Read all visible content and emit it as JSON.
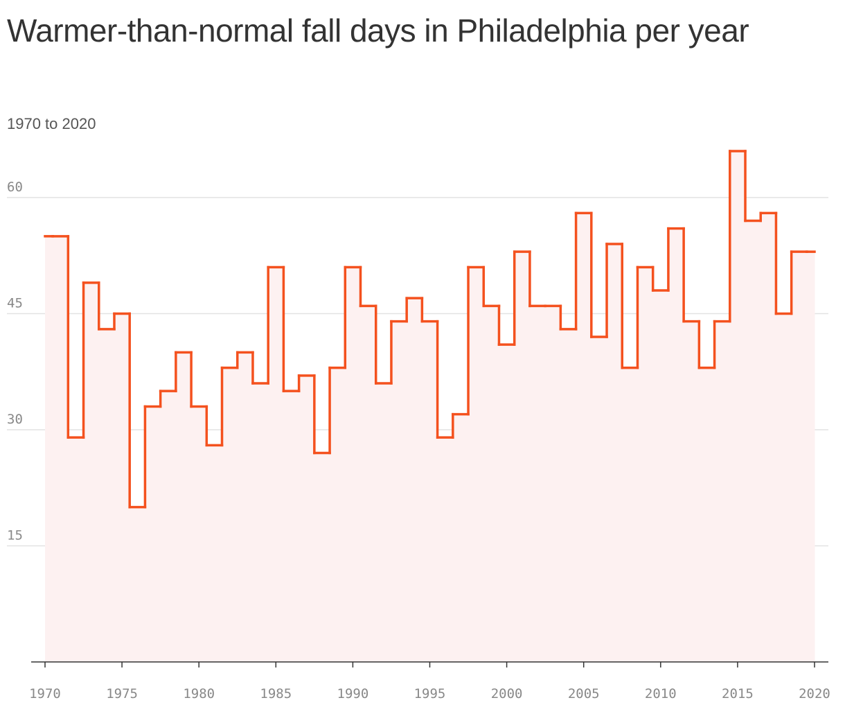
{
  "chart_data": {
    "type": "line",
    "step": "mid",
    "title": "Warmer-than-normal fall days in Philadelphia per year",
    "subtitle": "1970 to 2020",
    "x": [
      1970,
      1971,
      1972,
      1973,
      1974,
      1975,
      1976,
      1977,
      1978,
      1979,
      1980,
      1981,
      1982,
      1983,
      1984,
      1985,
      1986,
      1987,
      1988,
      1989,
      1990,
      1991,
      1992,
      1993,
      1994,
      1995,
      1996,
      1997,
      1998,
      1999,
      2000,
      2001,
      2002,
      2003,
      2004,
      2005,
      2006,
      2007,
      2008,
      2009,
      2010,
      2011,
      2012,
      2013,
      2014,
      2015,
      2016,
      2017,
      2018,
      2019,
      2020
    ],
    "series": [
      {
        "name": "Warmer-than-normal fall days",
        "color": "#f4511e",
        "area_color": "#fdf1f1",
        "values": [
          55,
          55,
          29,
          49,
          43,
          45,
          20,
          33,
          35,
          40,
          33,
          28,
          38,
          40,
          36,
          51,
          35,
          37,
          27,
          38,
          51,
          46,
          36,
          44,
          47,
          44,
          29,
          32,
          51,
          46,
          41,
          53,
          46,
          46,
          43,
          58,
          42,
          54,
          38,
          51,
          48,
          56,
          44,
          38,
          44,
          66,
          57,
          58,
          45,
          53,
          53
        ]
      }
    ],
    "xlim": [
      1970,
      2020
    ],
    "xticks": [
      1970,
      1975,
      1980,
      1985,
      1990,
      1995,
      2000,
      2005,
      2010,
      2015,
      2020
    ],
    "ylim": [
      0,
      66
    ],
    "yticks": [
      15,
      30,
      45,
      60
    ],
    "grid": true
  }
}
